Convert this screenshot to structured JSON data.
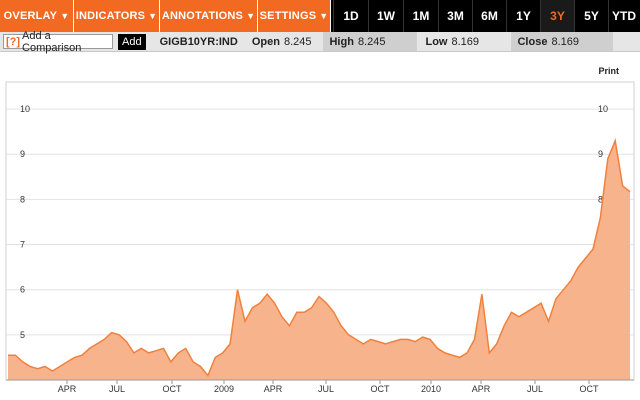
{
  "toolbar": {
    "menus": [
      {
        "label": "OVERLAY"
      },
      {
        "label": "INDICATORS"
      },
      {
        "label": "ANNOTATIONS"
      },
      {
        "label": "SETTINGS"
      }
    ],
    "ranges": [
      "1D",
      "1W",
      "1M",
      "3M",
      "6M",
      "1Y",
      "3Y",
      "5Y",
      "YTD"
    ],
    "active_range": "3Y"
  },
  "infobar": {
    "compare_prefix": "[?]",
    "compare_placeholder": "Add a Comparison",
    "add_label": "Add",
    "ticker": "GIGB10YR:IND",
    "open_label": "Open",
    "open_value": "8.245",
    "high_label": "High",
    "high_value": "8.245",
    "low_label": "Low",
    "low_value": "8.169",
    "close_label": "Close",
    "close_value": "8.169"
  },
  "print_label": "Print",
  "colors": {
    "accent": "#f26a21",
    "area_fill": "#f7b38c",
    "line": "#f0813d"
  },
  "chart_data": {
    "type": "area",
    "x_labels": [
      "APR",
      "JUL",
      "OCT",
      "2009",
      "APR",
      "JUL",
      "OCT",
      "2010",
      "APR",
      "JUL",
      "OCT"
    ],
    "y_ticks": [
      5,
      6,
      7,
      8,
      9,
      10
    ],
    "ylim": [
      4.0,
      10.6
    ],
    "grid": true,
    "series": [
      {
        "values": [
          4.55,
          4.55,
          4.4,
          4.3,
          4.25,
          4.3,
          4.2,
          4.3,
          4.4,
          4.5,
          4.55,
          4.7,
          4.8,
          4.9,
          5.05,
          5.0,
          4.85,
          4.6,
          4.7,
          4.6,
          4.65,
          4.7,
          4.4,
          4.6,
          4.7,
          4.4,
          4.3,
          4.1,
          4.5,
          4.6,
          4.8,
          6.0,
          5.3,
          5.6,
          5.7,
          5.9,
          5.7,
          5.4,
          5.2,
          5.5,
          5.5,
          5.6,
          5.85,
          5.7,
          5.5,
          5.2,
          5.0,
          4.9,
          4.8,
          4.9,
          4.85,
          4.8,
          4.85,
          4.9,
          4.9,
          4.85,
          4.95,
          4.9,
          4.7,
          4.6,
          4.55,
          4.5,
          4.6,
          4.9,
          5.9,
          4.6,
          4.8,
          5.2,
          5.5,
          5.4,
          5.5,
          5.6,
          5.7,
          5.3,
          5.8,
          6.0,
          6.2,
          6.5,
          6.7,
          6.9,
          7.6,
          8.9,
          9.3,
          8.3,
          8.17
        ]
      }
    ]
  }
}
